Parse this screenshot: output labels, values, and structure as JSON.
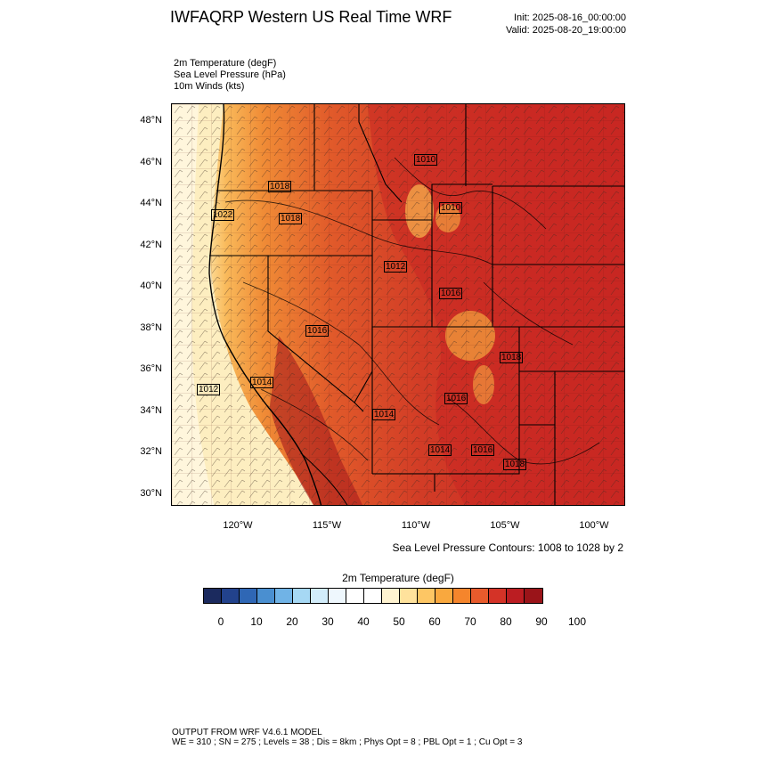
{
  "header": {
    "title": "IWFAQRP Western US Real Time WRF",
    "init": "Init: 2025-08-16_00:00:00",
    "valid": "Valid: 2025-08-20_19:00:00"
  },
  "variables": {
    "temperature": "2m Temperature   (degF)",
    "pressure": "Sea Level Pressure   (hPa)",
    "winds": "10m Winds   (kts)"
  },
  "map": {
    "latitude_labels": [
      "48°N",
      "46°N",
      "44°N",
      "42°N",
      "40°N",
      "38°N",
      "36°N",
      "34°N",
      "32°N",
      "30°N"
    ],
    "longitude_labels": [
      "120°W",
      "115°W",
      "110°W",
      "105°W",
      "100°W"
    ],
    "isobar_labels": [
      "1010",
      "1018",
      "1022",
      "1018",
      "1016",
      "1010",
      "1012",
      "1016",
      "1018",
      "1014",
      "1012",
      "1014",
      "1016",
      "1014",
      "1016",
      "1018"
    ],
    "contour_note": "Sea Level Pressure Contours: 1008 to 1028 by 2"
  },
  "colorbar": {
    "title": "2m Temperature  (degF)",
    "ticks": [
      "0",
      "10",
      "20",
      "30",
      "40",
      "50",
      "60",
      "70",
      "80",
      "90",
      "100"
    ],
    "colors": [
      "#1b2a5e",
      "#22428c",
      "#2f67b5",
      "#4a8fd0",
      "#70b3e6",
      "#a6d8f4",
      "#d2ecfa",
      "#eef7fd",
      "#ffffff",
      "#ffffff",
      "#fff3d0",
      "#ffe29c",
      "#fdc664",
      "#f9a83e",
      "#f5852c",
      "#e85b2c",
      "#d43327",
      "#bb1d22",
      "#9a1419"
    ]
  },
  "footer": {
    "line1": "OUTPUT FROM WRF V4.6.1 MODEL",
    "line2": "WE = 310 ; SN = 275 ; Levels = 38 ; Dis = 8km ; Phys Opt = 8 ; PBL Opt = 1 ; Cu Opt = 3"
  }
}
